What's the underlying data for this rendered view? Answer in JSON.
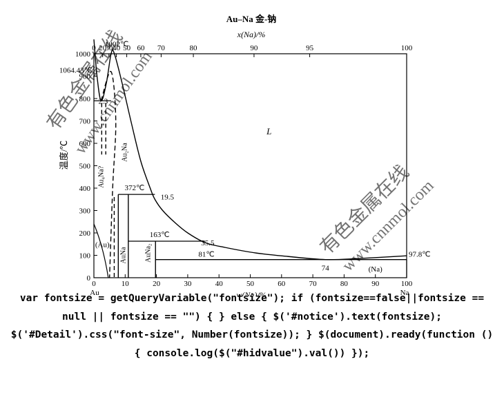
{
  "chart_data": {
    "type": "phase-diagram",
    "title": "Au–Na  金-钠",
    "xlabel_bottom": "w(Na)/%",
    "xlabel_top": "x(Na)/%",
    "ylabel": "温度/℃",
    "ylim": [
      0,
      1000
    ],
    "xlim": [
      0,
      100
    ],
    "bottom_ticks": [
      "0",
      "10",
      "20",
      "30",
      "40",
      "50",
      "60",
      "70",
      "80",
      "90",
      "100"
    ],
    "top_ticks": [
      {
        "label": "0",
        "w": 0
      },
      {
        "label": "20",
        "w": 2.8
      },
      {
        "label": "30",
        "w": 4.8
      },
      {
        "label": "40",
        "w": 7.2
      },
      {
        "label": "50",
        "w": 10.5
      },
      {
        "label": "60",
        "w": 15
      },
      {
        "label": "70",
        "w": 21.5
      },
      {
        "label": "80",
        "w": 31.8
      },
      {
        "label": "90",
        "w": 51.2
      },
      {
        "label": "95",
        "w": 69
      },
      {
        "label": "100",
        "w": 100
      }
    ],
    "y_ticks": [
      "0",
      "100",
      "200",
      "300",
      "400",
      "500",
      "600",
      "700",
      "800",
      "900",
      "1000"
    ],
    "left_element": "Au",
    "right_element": "Na",
    "annotations": [
      {
        "text": "1064.43℃",
        "w": 0,
        "t": 1064
      },
      {
        "text": "1002℃",
        "w": 6,
        "t": 1002
      },
      {
        "text": "2.3",
        "w": 2.3,
        "t": 790
      },
      {
        "text": "L",
        "w": 56,
        "t": 640
      },
      {
        "text": "372℃",
        "w": 13,
        "t": 372
      },
      {
        "text": "19.5",
        "w": 19.5,
        "t": 350
      },
      {
        "text": "163℃",
        "w": 21,
        "t": 163
      },
      {
        "text": "35.5",
        "w": 35.5,
        "t": 157
      },
      {
        "text": "81℃",
        "w": 36,
        "t": 81
      },
      {
        "text": "74",
        "w": 74,
        "t": 81
      },
      {
        "text": "97.8℃",
        "w": 100,
        "t": 97.8
      },
      {
        "text": "(Au)",
        "w": 0.5,
        "t": 150
      },
      {
        "text": "(Na)",
        "w": 90,
        "t": 40
      },
      {
        "text": "Au₄Na?",
        "w": 3,
        "t": 450
      },
      {
        "text": "Au₂Na",
        "w": 10.5,
        "t": 560
      },
      {
        "text": "AuNa",
        "w": 10,
        "t": 100
      },
      {
        "text": "AuNa₂",
        "w": 18,
        "t": 110
      }
    ],
    "series": [
      {
        "values": [
          [
            0,
            1064
          ],
          [
            1,
            900
          ],
          [
            2.3,
            790
          ],
          [
            4,
            870
          ],
          [
            5.5,
            1000
          ],
          [
            6.5,
            1002
          ],
          [
            9,
            870
          ],
          [
            12,
            690
          ],
          [
            15,
            520
          ],
          [
            18,
            400
          ],
          [
            19.5,
            350
          ],
          [
            22,
            300
          ],
          [
            26,
            245
          ],
          [
            30,
            200
          ],
          [
            35.5,
            157
          ],
          [
            42,
            135
          ],
          [
            52,
            110
          ],
          [
            62,
            95
          ],
          [
            74,
            81
          ],
          [
            85,
            86
          ],
          [
            100,
            97.8
          ]
        ]
      },
      {
        "values": [
          [
            2.3,
            790
          ],
          [
            5.5,
            920
          ],
          [
            7,
            700
          ],
          [
            6,
            400
          ],
          [
            5,
            0
          ]
        ]
      }
    ],
    "invariant_lines": [
      {
        "t": 790,
        "w_from": 0,
        "w_to": 5.5
      },
      {
        "t": 372,
        "w_from": 7.8,
        "w_to": 19.5
      },
      {
        "t": 163,
        "w_from": 11,
        "w_to": 35.5
      },
      {
        "t": 81,
        "w_from": 19.7,
        "w_to": 100
      }
    ],
    "compound_lines": [
      {
        "w": 7.8,
        "t_top": 372,
        "style": "solid"
      },
      {
        "w": 11,
        "t_top": 372,
        "style": "solid"
      },
      {
        "w": 19.7,
        "t_top": 163,
        "style": "solid"
      },
      {
        "w": 2.5,
        "t_top": 780,
        "t_bottom": 550,
        "style": "dashed"
      },
      {
        "w": 3.8,
        "t_top": 780,
        "t_bottom": 550,
        "style": "dashed"
      },
      {
        "w": 6.5,
        "t_top": 360,
        "t_bottom": 0,
        "style": "dashed"
      }
    ]
  },
  "watermarks": [
    {
      "text": "有色金属在线",
      "kind": "cjk"
    },
    {
      "text": "www.cnnmol.com",
      "kind": "latin"
    },
    {
      "text": "有色金属在线",
      "kind": "cjk"
    },
    {
      "text": "www.cnnmol.com",
      "kind": "latin"
    }
  ],
  "code_text": "var fontsize = getQueryVariable(\"fontsize\"); if (fontsize==false||fontsize == null || fontsize == \"\") { } else { $('#notice').text(fontsize); $('#Detail').css(\"font-size\", Number(fontsize)); } $(document).ready(function () { console.log($(\"#hidvalue\").val()) });"
}
